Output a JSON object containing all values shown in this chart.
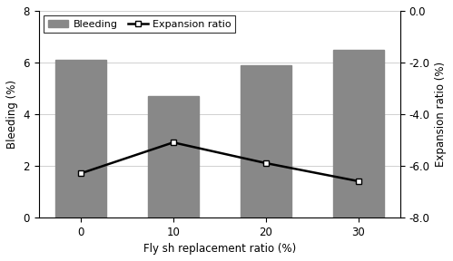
{
  "categories": [
    0,
    10,
    20,
    30
  ],
  "bar_values": [
    6.1,
    4.7,
    5.9,
    6.5
  ],
  "line_values": [
    -6.3,
    -5.1,
    -5.9,
    -6.6
  ],
  "bar_color": "#888888",
  "line_color": "#000000",
  "xlabel": "Fly sh replacement ratio (%)",
  "ylabel_left": "Bleeding (%)",
  "ylabel_right": "Expansion ratio (%)",
  "ylim_left": [
    0,
    8
  ],
  "ylim_right": [
    -8.0,
    0.0
  ],
  "yticks_left": [
    0,
    2,
    4,
    6,
    8
  ],
  "yticks_right": [
    -8.0,
    -6.0,
    -4.0,
    -2.0,
    0.0
  ],
  "ytick_right_labels": [
    "-8.0",
    "-6.0",
    "-4.0",
    "-2.0",
    "0.0"
  ],
  "legend_bar": "Bleeding",
  "legend_line": "Expansion ratio",
  "bar_width": 0.55,
  "background_color": "#ffffff",
  "grid_color": "#d0d0d0",
  "figsize": [
    4.99,
    2.88
  ],
  "dpi": 100
}
